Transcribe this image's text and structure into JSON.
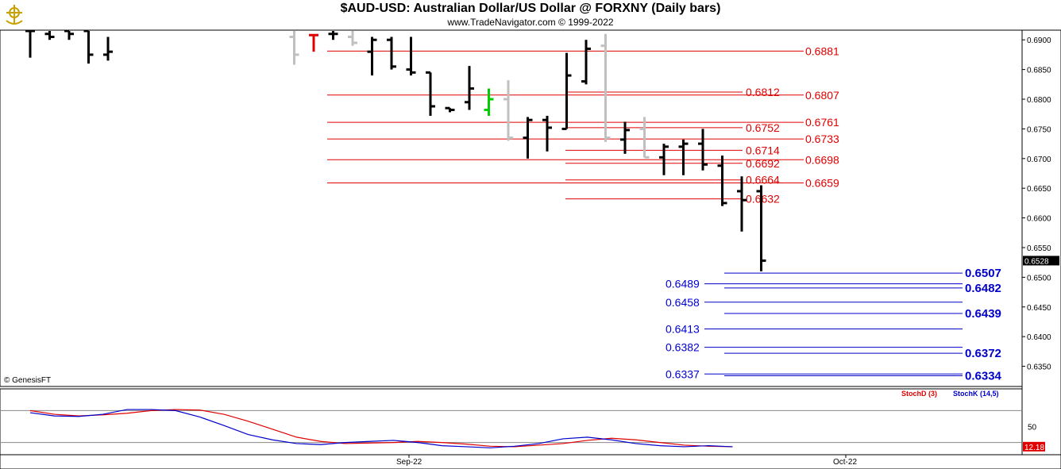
{
  "header": {
    "title": "$AUD-USD:  Australian Dollar/US Dollar @ FORXNY  (Daily bars)",
    "subtitle": "www.TradeNavigator.com © 1999-2022",
    "logo_icon": "trade-navigator-logo-icon"
  },
  "credit": "© GenesisFT",
  "colors": {
    "up_bar": "#000000",
    "gray_bar": "#c0c0c0",
    "red_level": "#e00000",
    "blue_level": "#0000cc",
    "stoch_d": "#e00000",
    "stoch_k": "#0000cc",
    "last_price_bg": "#000000",
    "stoch_last_bg": "#e00000"
  },
  "chart_data": [
    {
      "type": "ohlc",
      "title": "$AUD-USD:  Australian Dollar/US Dollar @ FORXNY  (Daily bars)",
      "ylim": [
        0.632,
        0.6915
      ],
      "y_ticks": [
        "0.6900",
        "0.6850",
        "0.6800",
        "0.6750",
        "0.6700",
        "0.6650",
        "0.6600",
        "0.6550",
        "0.6500",
        "0.6450",
        "0.6400",
        "0.6350"
      ],
      "y_tick_values": [
        0.69,
        0.685,
        0.68,
        0.675,
        0.67,
        0.665,
        0.66,
        0.655,
        0.65,
        0.645,
        0.64,
        0.635
      ],
      "x_labels": [
        "Sep-22",
        "Oct-22"
      ],
      "last_price": "0.6528",
      "bars": [
        {
          "h": 0.6915,
          "l": 0.687,
          "o": 0.6915,
          "c": 0.6915,
          "color": "black"
        },
        {
          "h": 0.6915,
          "l": 0.69,
          "o": 0.691,
          "c": 0.6905,
          "color": "black"
        },
        {
          "h": 0.6915,
          "l": 0.69,
          "o": 0.6915,
          "c": 0.691,
          "color": "black"
        },
        {
          "h": 0.6915,
          "l": 0.686,
          "o": 0.6915,
          "c": 0.6875,
          "color": "black"
        },
        {
          "h": 0.6905,
          "l": 0.6865,
          "o": 0.6875,
          "c": 0.688,
          "color": "black"
        },
        {
          "h": 0.6915,
          "l": 0.6858,
          "o": 0.6905,
          "c": 0.6875,
          "color": "gray"
        },
        {
          "h": 0.6908,
          "l": 0.688,
          "o": 0.6908,
          "c": 0.6908,
          "color": "red"
        },
        {
          "h": 0.6915,
          "l": 0.69,
          "o": 0.691,
          "c": 0.691,
          "color": "black"
        },
        {
          "h": 0.6915,
          "l": 0.689,
          "o": 0.6905,
          "c": 0.6895,
          "color": "gray"
        },
        {
          "h": 0.6905,
          "l": 0.684,
          "o": 0.688,
          "c": 0.69,
          "color": "black"
        },
        {
          "h": 0.6905,
          "l": 0.685,
          "o": 0.69,
          "c": 0.6855,
          "color": "black"
        },
        {
          "h": 0.6905,
          "l": 0.684,
          "o": 0.685,
          "c": 0.6845,
          "color": "black"
        },
        {
          "h": 0.6845,
          "l": 0.6772,
          "o": 0.6845,
          "c": 0.6788,
          "color": "black"
        },
        {
          "h": 0.6785,
          "l": 0.6778,
          "o": 0.6785,
          "c": 0.6782,
          "color": "black"
        },
        {
          "h": 0.6856,
          "l": 0.6782,
          "o": 0.6795,
          "c": 0.6818,
          "color": "black"
        },
        {
          "h": 0.6818,
          "l": 0.6772,
          "o": 0.6782,
          "c": 0.68,
          "color": "green"
        },
        {
          "h": 0.6832,
          "l": 0.673,
          "o": 0.68,
          "c": 0.6735,
          "color": "gray"
        },
        {
          "h": 0.677,
          "l": 0.67,
          "o": 0.6735,
          "c": 0.6765,
          "color": "black"
        },
        {
          "h": 0.6772,
          "l": 0.6712,
          "o": 0.6765,
          "c": 0.6752,
          "color": "black"
        },
        {
          "h": 0.6878,
          "l": 0.675,
          "o": 0.675,
          "c": 0.684,
          "color": "black"
        },
        {
          "h": 0.69,
          "l": 0.6825,
          "o": 0.683,
          "c": 0.6885,
          "color": "black"
        },
        {
          "h": 0.691,
          "l": 0.6728,
          "o": 0.689,
          "c": 0.6735,
          "color": "gray"
        },
        {
          "h": 0.6762,
          "l": 0.6708,
          "o": 0.6732,
          "c": 0.6748,
          "color": "black"
        },
        {
          "h": 0.677,
          "l": 0.6702,
          "o": 0.675,
          "c": 0.6702,
          "color": "gray"
        },
        {
          "h": 0.6725,
          "l": 0.6672,
          "o": 0.6702,
          "c": 0.672,
          "color": "black"
        },
        {
          "h": 0.6732,
          "l": 0.6672,
          "o": 0.672,
          "c": 0.6725,
          "color": "black"
        },
        {
          "h": 0.675,
          "l": 0.668,
          "o": 0.6725,
          "c": 0.669,
          "color": "black"
        },
        {
          "h": 0.6705,
          "l": 0.662,
          "o": 0.6688,
          "c": 0.6625,
          "color": "black"
        },
        {
          "h": 0.667,
          "l": 0.6577,
          "o": 0.6645,
          "c": 0.663,
          "color": "black"
        },
        {
          "h": 0.6655,
          "l": 0.651,
          "o": 0.6645,
          "c": 0.6528,
          "color": "black"
        }
      ],
      "levels_red": [
        {
          "value": 0.6881,
          "label": "0.6881",
          "side": "right"
        },
        {
          "value": 0.6812,
          "label": "0.6812",
          "side": "left"
        },
        {
          "value": 0.6807,
          "label": "0.6807",
          "side": "right"
        },
        {
          "value": 0.6761,
          "label": "0.6761",
          "side": "right"
        },
        {
          "value": 0.6752,
          "label": "0.6752",
          "side": "left"
        },
        {
          "value": 0.6733,
          "label": "0.6733",
          "side": "right"
        },
        {
          "value": 0.6714,
          "label": "0.6714",
          "side": "left"
        },
        {
          "value": 0.6698,
          "label": "0.6698",
          "side": "right"
        },
        {
          "value": 0.6692,
          "label": "0.6692",
          "side": "left"
        },
        {
          "value": 0.6664,
          "label": "0.6664",
          "side": "left"
        },
        {
          "value": 0.6659,
          "label": "0.6659",
          "side": "right"
        },
        {
          "value": 0.6632,
          "label": "0.6632",
          "side": "left"
        }
      ],
      "levels_blue": [
        {
          "value": 0.6507,
          "label": "0.6507",
          "side": "right"
        },
        {
          "value": 0.6489,
          "label": "0.6489",
          "side": "left"
        },
        {
          "value": 0.6482,
          "label": "0.6482",
          "side": "right"
        },
        {
          "value": 0.6458,
          "label": "0.6458",
          "side": "left"
        },
        {
          "value": 0.6439,
          "label": "0.6439",
          "side": "right"
        },
        {
          "value": 0.6413,
          "label": "0.6413",
          "side": "left"
        },
        {
          "value": 0.6382,
          "label": "0.6382",
          "side": "left"
        },
        {
          "value": 0.6372,
          "label": "0.6372",
          "side": "right"
        },
        {
          "value": 0.6337,
          "label": "0.6337",
          "side": "left"
        },
        {
          "value": 0.6334,
          "label": "0.6334",
          "side": "right"
        }
      ]
    },
    {
      "type": "line",
      "title": "",
      "ylim": [
        0,
        100
      ],
      "y_ticks": [
        "50"
      ],
      "y_tick_values": [
        50
      ],
      "h_lines": [
        80,
        20
      ],
      "last_value": "12.18",
      "series": [
        {
          "name": "StochD (3)",
          "color": "red",
          "values": [
            80,
            73,
            70,
            72,
            75,
            80,
            82,
            81,
            73,
            60,
            45,
            30,
            22,
            18,
            19,
            20,
            22,
            20,
            17,
            13,
            12,
            15,
            18,
            24,
            28,
            25,
            20,
            15,
            13,
            12
          ]
        },
        {
          "name": "StochK (14,5)",
          "color": "blue",
          "values": [
            76,
            70,
            69,
            73,
            82,
            82,
            80,
            68,
            52,
            35,
            25,
            18,
            16,
            20,
            22,
            24,
            20,
            14,
            12,
            10,
            13,
            18,
            27,
            30,
            25,
            18,
            14,
            12,
            14,
            12
          ]
        }
      ]
    }
  ]
}
